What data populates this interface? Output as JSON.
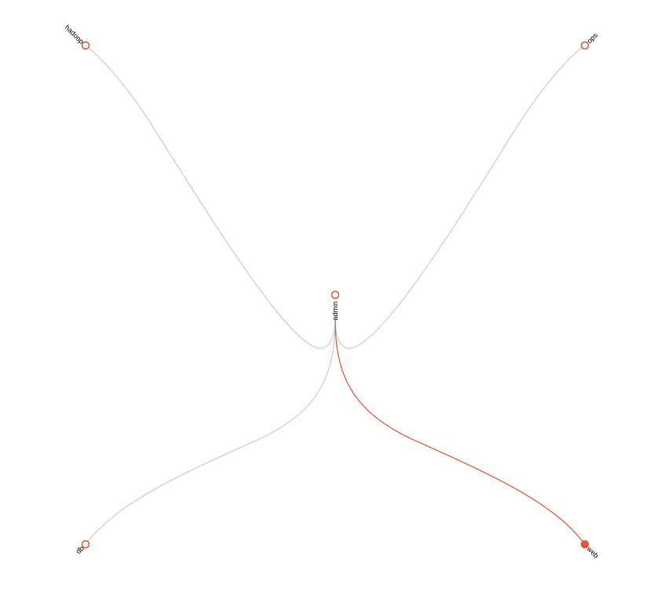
{
  "colors": {
    "background": "#ffffff",
    "edge_default": "#cccccc",
    "edge_highlight": "#e45532",
    "node_stroke": "#e45532",
    "node_fill_default": "#ffffff",
    "node_fill_selected": "#e45532",
    "label": "#000000"
  },
  "diagram": {
    "center_node": {
      "id": "admin",
      "label": "admin",
      "selected": false
    },
    "nodes": [
      {
        "id": "hadoop",
        "label": "hadoop",
        "selected": false
      },
      {
        "id": "ops",
        "label": "ops",
        "selected": false
      },
      {
        "id": "db",
        "label": "db",
        "selected": false
      },
      {
        "id": "web",
        "label": "web",
        "selected": true
      }
    ],
    "edges": [
      {
        "source": "admin",
        "target": "hadoop",
        "highlighted": false
      },
      {
        "source": "admin",
        "target": "ops",
        "highlighted": false
      },
      {
        "source": "admin",
        "target": "db",
        "highlighted": false
      },
      {
        "source": "admin",
        "target": "web",
        "highlighted": true
      }
    ]
  }
}
